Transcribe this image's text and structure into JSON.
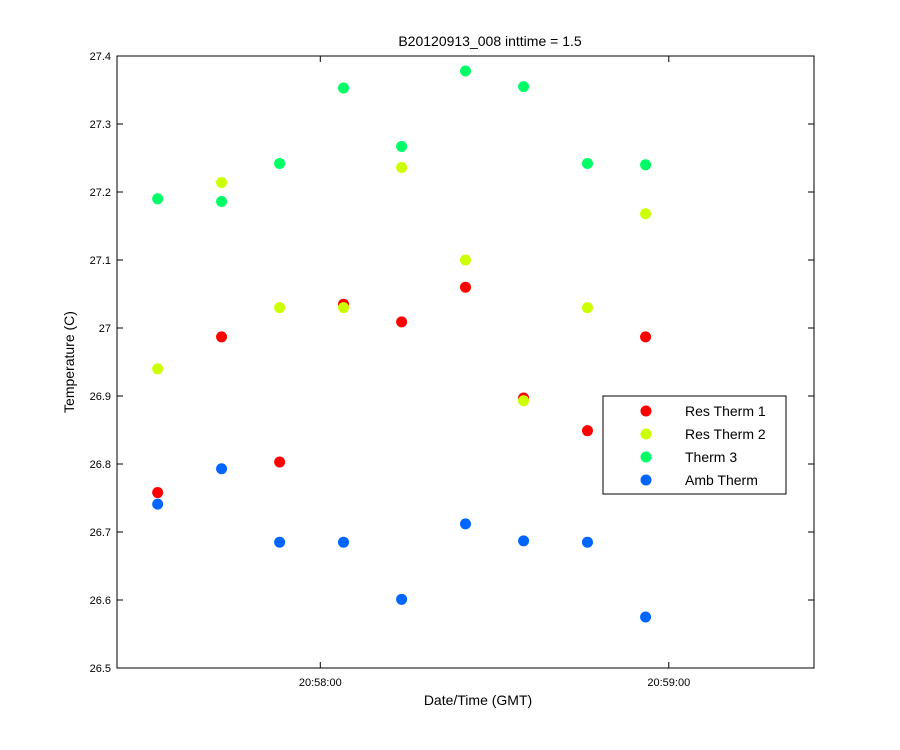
{
  "chart_data": {
    "type": "scatter",
    "title": "B20120913_008 inttime = 1.5",
    "xlabel": "Date/Time (GMT)",
    "ylabel": "Temperature (C)",
    "xlim": [
      "20:57:25",
      "20:59:25"
    ],
    "ylim": [
      26.5,
      27.4
    ],
    "x_ticks": [
      "20:58:00",
      "20:59:00"
    ],
    "y_ticks": [
      "26.5",
      "26.6",
      "26.7",
      "26.8",
      "26.9",
      "27",
      "27.1",
      "27.2",
      "27.3",
      "27.4"
    ],
    "grid": false,
    "legend_position": "center-right",
    "x": [
      "20:57:32",
      "20:57:43",
      "20:57:53",
      "20:58:04",
      "20:58:14",
      "20:58:25",
      "20:58:35",
      "20:58:46",
      "20:58:56"
    ],
    "series": [
      {
        "name": "Res Therm 1",
        "color": "#ff0000",
        "values": [
          26.758,
          26.987,
          26.803,
          27.035,
          27.009,
          27.06,
          26.897,
          26.849,
          26.987
        ]
      },
      {
        "name": "Res Therm 2",
        "color": "#ccff00",
        "values": [
          26.94,
          27.214,
          27.03,
          27.03,
          27.236,
          27.1,
          26.893,
          27.03,
          27.168
        ]
      },
      {
        "name": "Therm 3",
        "color": "#00ff66",
        "values": [
          27.19,
          27.186,
          27.242,
          27.353,
          27.267,
          27.378,
          27.355,
          27.242,
          27.24
        ]
      },
      {
        "name": "Amb Therm",
        "color": "#0066ff",
        "values": [
          26.741,
          26.793,
          26.685,
          26.685,
          26.601,
          26.712,
          26.687,
          26.685,
          26.575
        ]
      }
    ]
  }
}
